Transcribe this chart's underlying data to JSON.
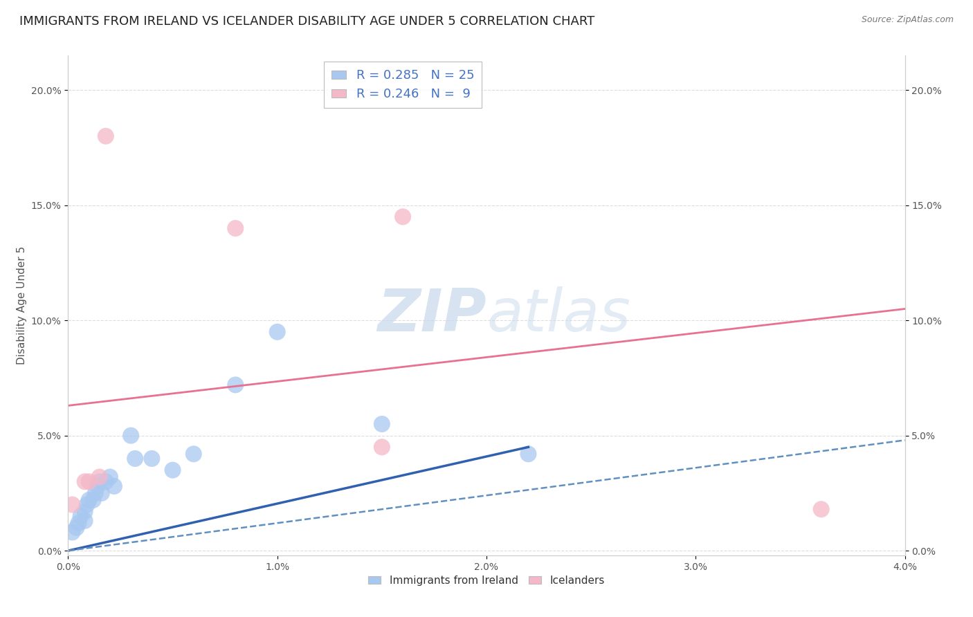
{
  "title": "IMMIGRANTS FROM IRELAND VS ICELANDER DISABILITY AGE UNDER 5 CORRELATION CHART",
  "source": "Source: ZipAtlas.com",
  "ylabel": "Disability Age Under 5",
  "xlim": [
    0.0,
    0.04
  ],
  "ylim": [
    -0.002,
    0.215
  ],
  "xticks": [
    0.0,
    0.01,
    0.02,
    0.03,
    0.04
  ],
  "xtick_labels": [
    "0.0%",
    "1.0%",
    "2.0%",
    "3.0%",
    "4.0%"
  ],
  "yticks": [
    0.0,
    0.05,
    0.1,
    0.15,
    0.2
  ],
  "ytick_labels": [
    "0.0%",
    "5.0%",
    "10.0%",
    "15.0%",
    "20.0%"
  ],
  "ireland_color": "#A8C8F0",
  "iceland_color": "#F4B8C8",
  "ireland_R": 0.285,
  "ireland_N": 25,
  "iceland_R": 0.246,
  "iceland_N": 9,
  "ireland_x": [
    0.0002,
    0.0004,
    0.0005,
    0.0006,
    0.0008,
    0.0008,
    0.0009,
    0.001,
    0.0012,
    0.0013,
    0.0014,
    0.0015,
    0.0016,
    0.0018,
    0.002,
    0.0022,
    0.003,
    0.0032,
    0.004,
    0.005,
    0.006,
    0.008,
    0.01,
    0.015,
    0.022
  ],
  "ireland_y": [
    0.008,
    0.01,
    0.012,
    0.015,
    0.013,
    0.017,
    0.02,
    0.022,
    0.022,
    0.025,
    0.028,
    0.03,
    0.025,
    0.03,
    0.032,
    0.028,
    0.05,
    0.04,
    0.04,
    0.035,
    0.042,
    0.072,
    0.095,
    0.055,
    0.042
  ],
  "iceland_x": [
    0.0002,
    0.0008,
    0.001,
    0.0015,
    0.0018,
    0.008,
    0.015,
    0.016,
    0.036
  ],
  "iceland_y": [
    0.02,
    0.03,
    0.03,
    0.032,
    0.18,
    0.14,
    0.045,
    0.145,
    0.018
  ],
  "ireland_trend": [
    0.0,
    0.0,
    0.022,
    0.045
  ],
  "ireland_dashed_trend": [
    0.0,
    0.0,
    0.04,
    0.048
  ],
  "iceland_trend": [
    0.0,
    0.063,
    0.04,
    0.105
  ],
  "bg_color": "#FFFFFF",
  "grid_color": "#DDDDDD",
  "tick_color": "#555555",
  "title_fontsize": 13,
  "label_fontsize": 11,
  "tick_fontsize": 10,
  "legend_color": "#4472C4"
}
